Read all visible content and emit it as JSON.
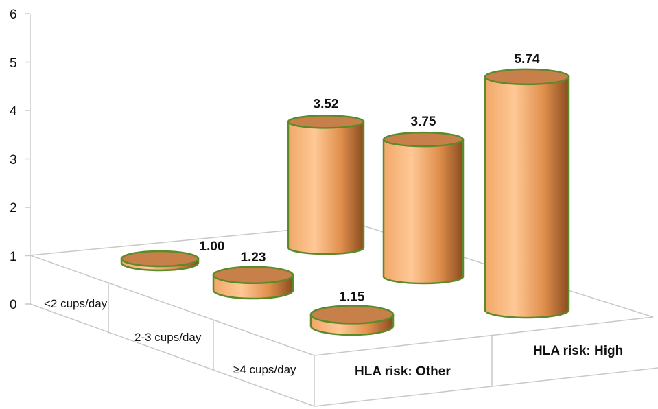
{
  "chart_data": {
    "type": "bar",
    "subtype": "3d-cylinder",
    "title": "",
    "xlabel": "",
    "ylabel": "",
    "ylim": [
      0,
      6
    ],
    "y_ticks": [
      "0",
      "1",
      "2",
      "3",
      "4",
      "5",
      "6"
    ],
    "categories": [
      "<2 cups/day",
      "2-3 cups/day",
      "≥4 cups/day"
    ],
    "series": [
      {
        "name": "HLA risk: Other",
        "values": [
          1.0,
          1.23,
          1.15
        ],
        "labels": [
          "1.00",
          "1.23",
          "1.15"
        ]
      },
      {
        "name": "HLA risk: High",
        "values": [
          3.52,
          3.75,
          5.74
        ],
        "labels": [
          "3.52",
          "3.75",
          "5.74"
        ]
      }
    ],
    "colors": {
      "cylinder_body": "#f4a460",
      "cylinder_top": "#c8804a",
      "cylinder_outline": "#5a8a2a",
      "axis": "#c8c8c8"
    }
  }
}
